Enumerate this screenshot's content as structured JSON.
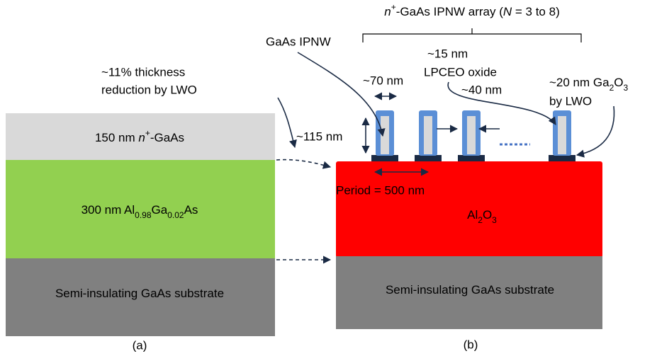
{
  "panel_a": {
    "caption": "(a)",
    "layers": [
      [
        "150 nm ",
        "n",
        "+",
        "-GaAs"
      ],
      [
        "300 nm Al",
        "0.98",
        "Ga",
        "0.02",
        "As"
      ],
      [
        "Semi-insulating GaAs substrate"
      ]
    ]
  },
  "panel_b": {
    "caption": "(b)",
    "layers": [
      [
        "Al",
        "2",
        "O",
        "3"
      ],
      [
        "Semi-insulating GaAs substrate"
      ]
    ],
    "array_label": [
      "n",
      "+",
      "-GaAs IPNW array (",
      "N",
      " = 3 to 8)"
    ],
    "annotations": {
      "ipnw": "GaAs IPNW",
      "thickness": [
        "~11% thickness",
        "reduction by LWO"
      ],
      "width": "~70 nm",
      "height": "~115 nm",
      "oxide": [
        "~15 nm",
        "LPCEO oxide"
      ],
      "gap": "~40 nm",
      "ga2o3": [
        [
          "~20 nm Ga",
          "2",
          "O",
          "3"
        ],
        "by LWO"
      ],
      "period": "Period = 500 nm"
    }
  }
}
